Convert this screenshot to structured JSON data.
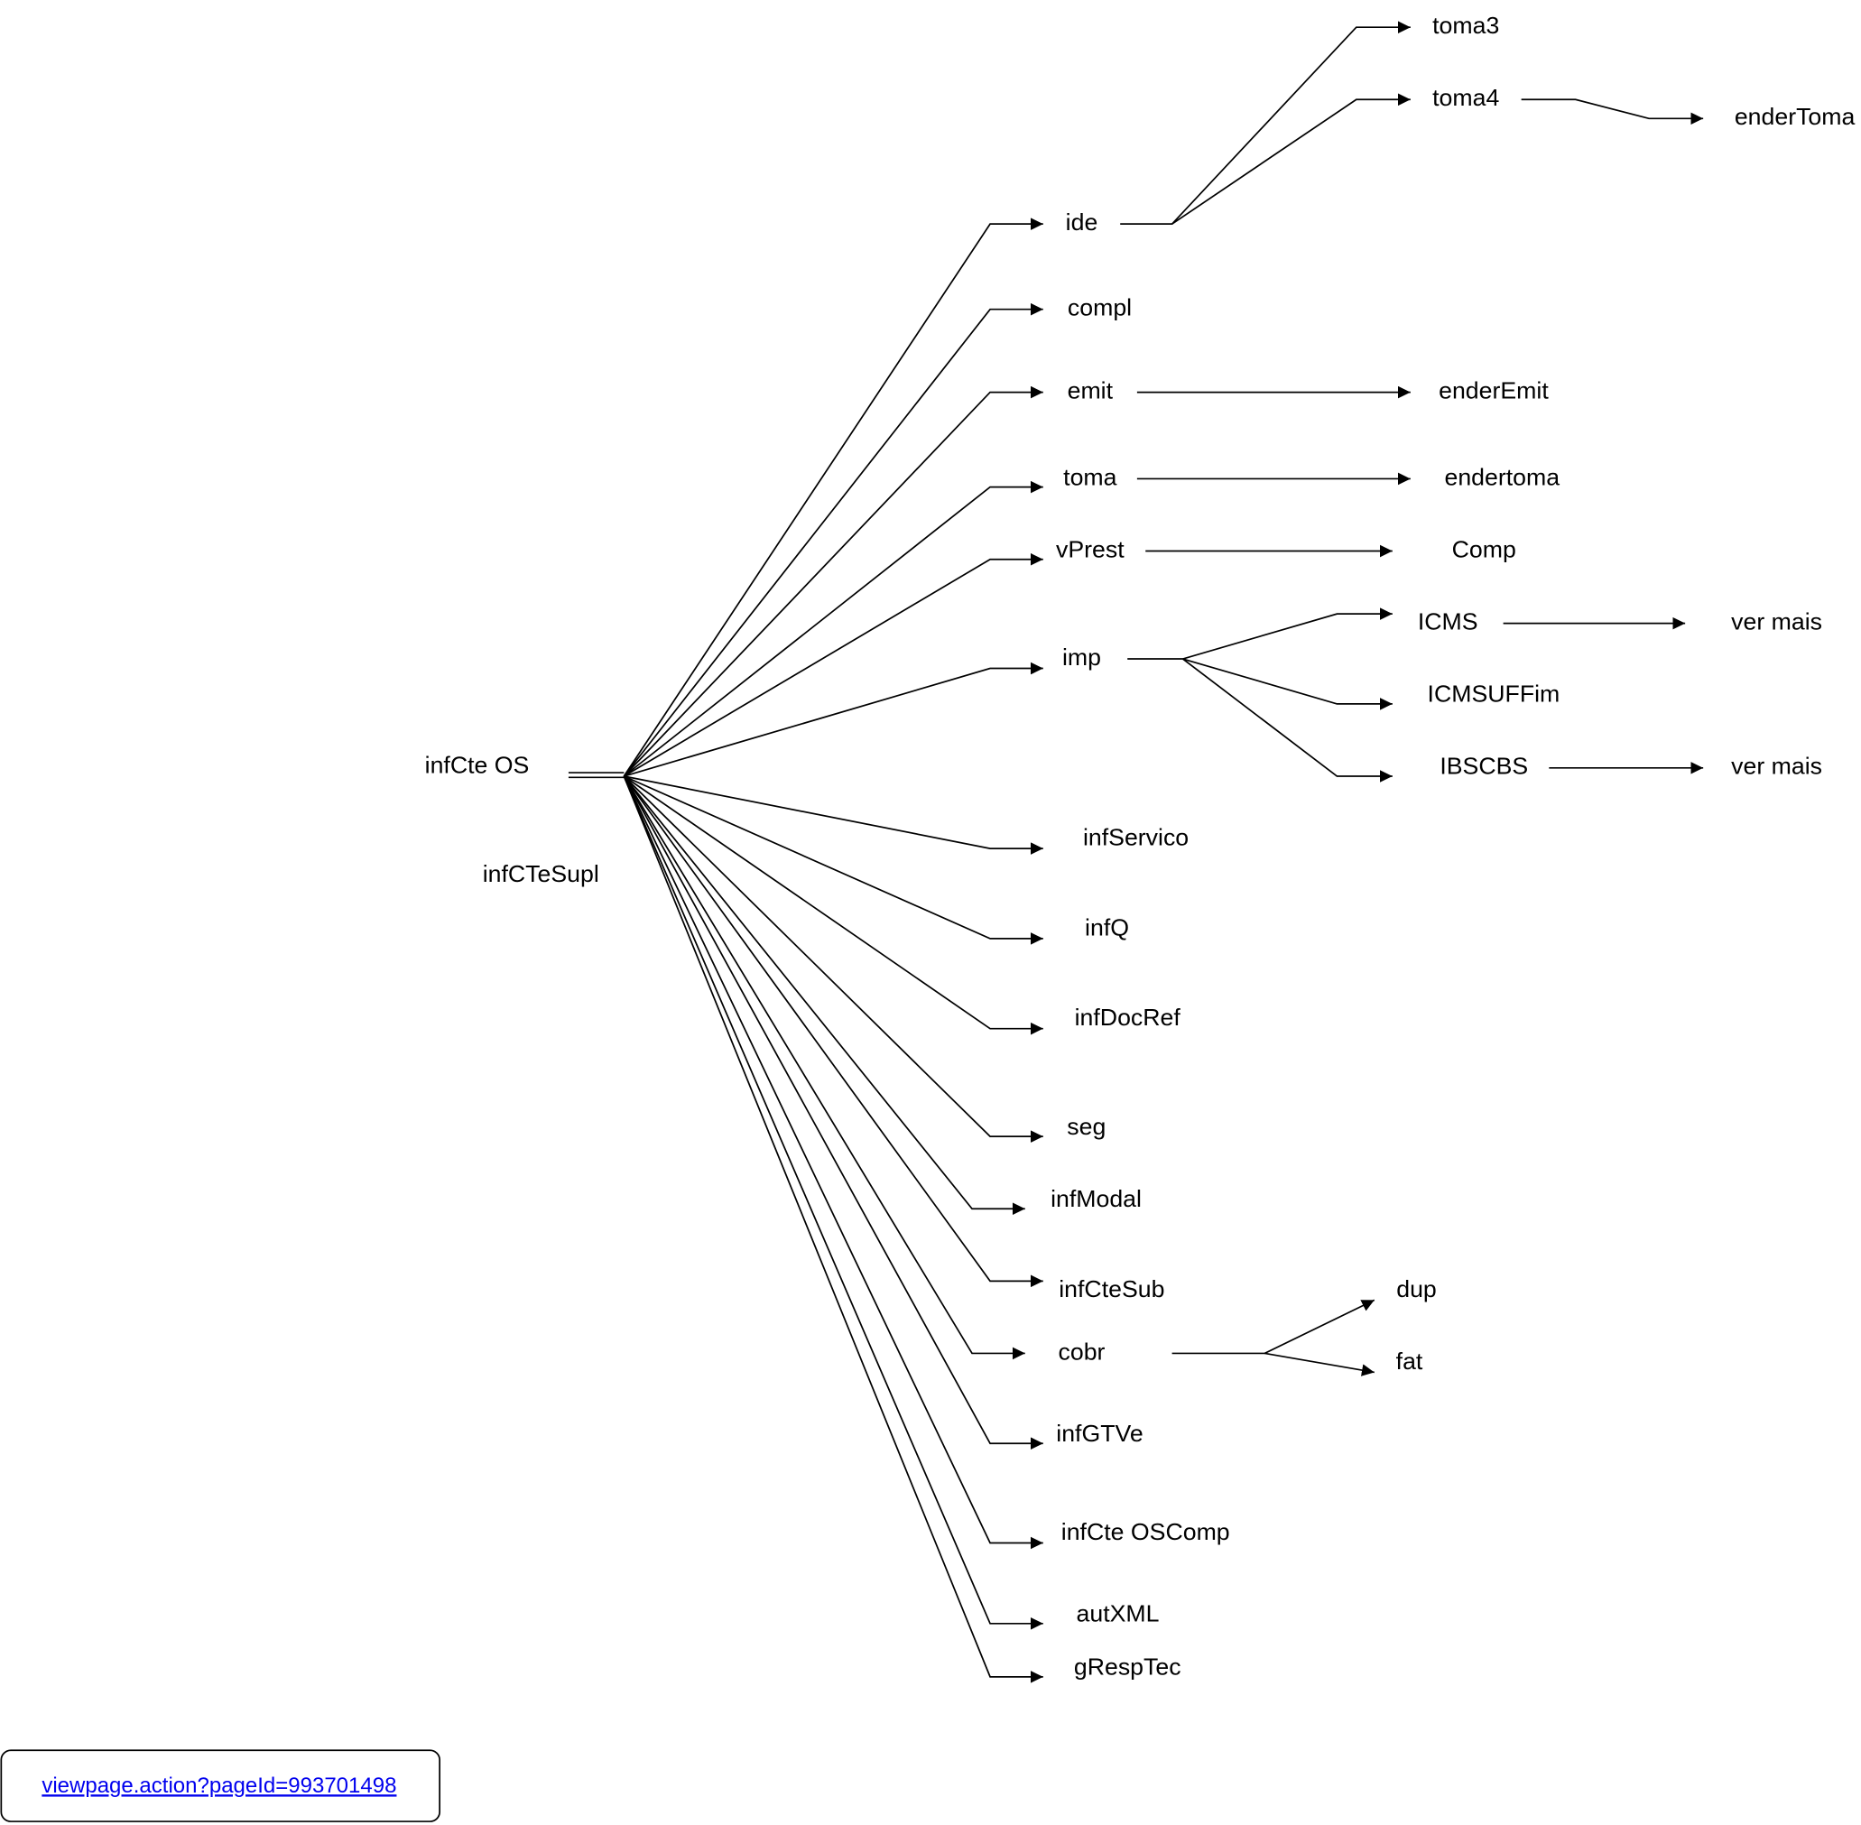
{
  "nodes": [
    {
      "label": "infCte OS"
    },
    {
      "label": "infCTeSupl"
    },
    {
      "label": "ide"
    },
    {
      "label": "compl"
    },
    {
      "label": "emit"
    },
    {
      "label": "toma"
    },
    {
      "label": "vPrest"
    },
    {
      "label": "imp"
    },
    {
      "label": "infServico"
    },
    {
      "label": "infQ"
    },
    {
      "label": "infDocRef"
    },
    {
      "label": "seg"
    },
    {
      "label": "infModal"
    },
    {
      "label": "infCteSub"
    },
    {
      "label": "cobr"
    },
    {
      "label": "infGTVe"
    },
    {
      "label": "infCte OSComp"
    },
    {
      "label": "autXML"
    },
    {
      "label": "gRespTec"
    },
    {
      "label": "toma3"
    },
    {
      "label": "toma4"
    },
    {
      "label": "enderToma"
    },
    {
      "label": "enderEmit"
    },
    {
      "label": "endertoma"
    },
    {
      "label": "Comp"
    },
    {
      "label": "ICMS"
    },
    {
      "label": "ICMSUFFim"
    },
    {
      "label": "IBSCBS"
    },
    {
      "label": "ver mais"
    },
    {
      "label": "ver mais"
    },
    {
      "label": "dup"
    },
    {
      "label": "fat"
    }
  ],
  "link": {
    "text": "viewpage.action?pageId=993701498"
  }
}
